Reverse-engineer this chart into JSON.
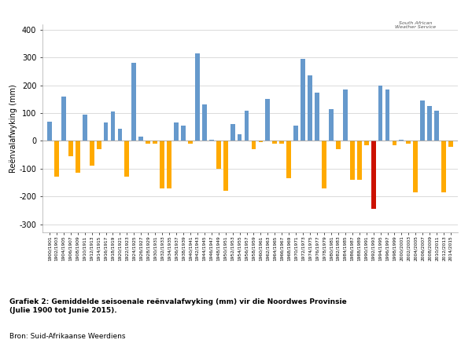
{
  "title": "Grafiek 2: Gemiddelde seisoenale reënvalafwyking (mm) vir die Noordwes Provinsie\n(Julie 1900 tot Junie 2015).",
  "source": "Bron: Suid-Afrikaanse Weerdiens",
  "ylabel": "Reënvalafwyking (mm)",
  "ylim": [
    -330,
    420
  ],
  "yticks": [
    -300,
    -200,
    -100,
    0,
    100,
    200,
    300,
    400
  ],
  "background_color": "#ffffff",
  "bar_color_pos": "#6699cc",
  "bar_color_neg": "#ffaa00",
  "bar_color_special": "#cc1100",
  "special_year": "1992/1993",
  "labels": [
    "1900/1901",
    "1902/1903",
    "1904/1905",
    "1906/1907",
    "1908/1909",
    "1910/1911",
    "1912/1913",
    "1914/1915",
    "1916/1917",
    "1918/1919",
    "1920/1921",
    "1922/1923",
    "1924/1925",
    "1926/1927",
    "1928/1929",
    "1930/1931",
    "1932/1933",
    "1934/1935",
    "1936/1937",
    "1938/1939",
    "1940/1941",
    "1942/1943",
    "1944/1945",
    "1946/1947",
    "1948/1949",
    "1950/1951",
    "1952/1953",
    "1954/1955",
    "1956/1957",
    "1958/1959",
    "1960/1961",
    "1962/1963",
    "1964/1965",
    "1966/1967",
    "1968/1969",
    "1970/1971",
    "1972/1973",
    "1974/1975",
    "1976/1977",
    "1978/1979",
    "1980/1981",
    "1982/1983",
    "1984/1985",
    "1986/1987",
    "1988/1989",
    "1990/1991",
    "1992/1993",
    "1994/1995",
    "1996/1997",
    "1998/1999",
    "2000/2001",
    "2002/2003",
    "2004/2005",
    "2006/2007",
    "2008/2009",
    "2010/2011",
    "2012/2013",
    "2014/2015"
  ],
  "values": [
    70,
    -130,
    160,
    -55,
    -115,
    95,
    -90,
    -30,
    65,
    105,
    45,
    -130,
    280,
    15,
    -10,
    -10,
    -170,
    -170,
    65,
    55,
    -10,
    315,
    130,
    5,
    -100,
    -180,
    60,
    25,
    110,
    -30,
    -5,
    150,
    -10,
    -10,
    -135,
    55,
    295,
    235,
    175,
    -170,
    115,
    -30,
    185,
    -140,
    -140,
    -15,
    -245,
    200,
    185,
    -15,
    5,
    -10,
    -185,
    145,
    125,
    110,
    -185,
    -20
  ]
}
